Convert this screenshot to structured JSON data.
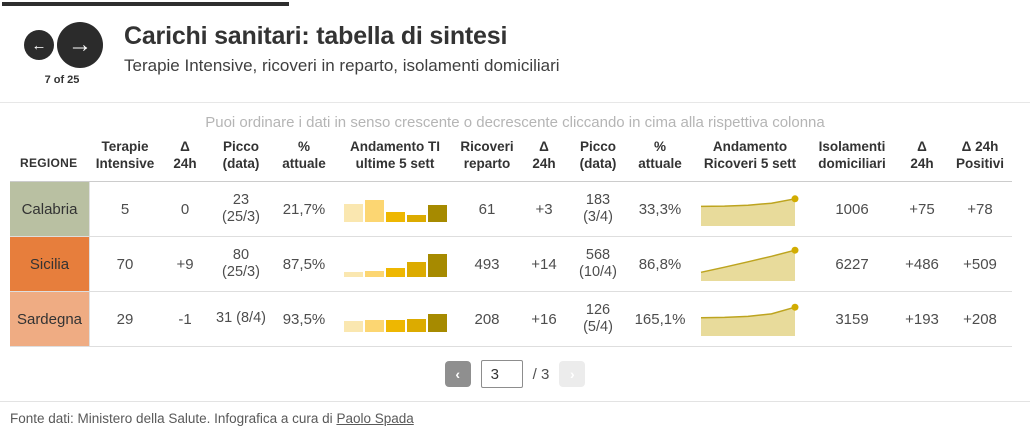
{
  "progress": {
    "current": 7,
    "total": 25
  },
  "header": {
    "slide_count": "7 of 25",
    "title": "Carichi sanitari: tabella di sintesi",
    "subtitle": "Terapie Intensive, ricoveri in reparto, isolamenti domiciliari",
    "prev_icon": "←",
    "next_icon": "→"
  },
  "hint": "Puoi ordinare i dati in senso crescente o decrescente cliccando in cima alla rispettiva colonna",
  "sparkline": {
    "bar_colors": [
      "#fae7b0",
      "#fcd672",
      "#eeb701",
      "#dcab00",
      "#a68a00"
    ],
    "area_fill": "#e8db9b",
    "area_line": "#bda41f",
    "area_dot": "#d2ac00"
  },
  "chart_data": {
    "type": "table",
    "title": "Carichi sanitari: tabella di sintesi",
    "columns": [
      {
        "id": "regione",
        "label": "REGIONE"
      },
      {
        "id": "ti",
        "label": "Terapie\nIntensive"
      },
      {
        "id": "ti_delta",
        "label": "Δ\n24h"
      },
      {
        "id": "ti_picco",
        "label": "Picco\n(data)"
      },
      {
        "id": "ti_pct",
        "label": "%\nattuale"
      },
      {
        "id": "ti_trend",
        "label": "Andamento TI\nultime 5 sett"
      },
      {
        "id": "ricoveri",
        "label": "Ricoveri\nreparto"
      },
      {
        "id": "ric_delta",
        "label": "Δ\n24h"
      },
      {
        "id": "ric_picco",
        "label": "Picco\n(data)"
      },
      {
        "id": "ric_pct",
        "label": "%\nattuale"
      },
      {
        "id": "ric_trend",
        "label": "Andamento\nRicoveri 5 sett"
      },
      {
        "id": "isolamenti",
        "label": "Isolamenti\ndomiciliari"
      },
      {
        "id": "isol_delta",
        "label": "Δ\n24h"
      },
      {
        "id": "positivi_delta",
        "label": "Δ 24h\nPositivi"
      }
    ],
    "rows": [
      {
        "regione": "Calabria",
        "region_color": "#b9c0a2",
        "ti": "5",
        "ti_delta": "0",
        "ti_picco_1": "23",
        "ti_picco_2": "(25/3)",
        "ti_pct": "21,7%",
        "ti_trend": [
          0.78,
          0.96,
          0.43,
          0.3,
          0.74
        ],
        "ricoveri": "61",
        "ric_delta": "+3",
        "ric_picco_1": "183",
        "ric_picco_2": "(3/4)",
        "ric_pct": "33,3%",
        "ric_trend": [
          0.58,
          0.59,
          0.62,
          0.68,
          0.82
        ],
        "isolamenti": "1006",
        "isol_delta": "+75",
        "positivi_delta": "+78"
      },
      {
        "regione": "Sicilia",
        "region_color": "#e77e3c",
        "ti": "70",
        "ti_delta": "+9",
        "ti_picco_1": "80",
        "ti_picco_2": "(25/3)",
        "ti_pct": "87,5%",
        "ti_trend": [
          0.22,
          0.26,
          0.39,
          0.65,
          1.0
        ],
        "ricoveri": "493",
        "ric_delta": "+14",
        "ric_picco_1": "568",
        "ric_picco_2": "(10/4)",
        "ric_pct": "86,8%",
        "ric_trend": [
          0.24,
          0.4,
          0.57,
          0.74,
          0.93
        ],
        "isolamenti": "6227",
        "isol_delta": "+486",
        "positivi_delta": "+509"
      },
      {
        "regione": "Sardegna",
        "region_color": "#efac83",
        "ti": "29",
        "ti_delta": "-1",
        "ti_picco_1": "31 (8/4)",
        "ti_picco_2": "",
        "ti_pct": "93,5%",
        "ti_trend": [
          0.48,
          0.52,
          0.52,
          0.57,
          0.78
        ],
        "ricoveri": "208",
        "ric_delta": "+16",
        "ric_picco_1": "126",
        "ric_picco_2": "(5/4)",
        "ric_pct": "165,1%",
        "ric_trend": [
          0.54,
          0.55,
          0.58,
          0.66,
          0.87
        ],
        "isolamenti": "3159",
        "isol_delta": "+193",
        "positivi_delta": "+208"
      }
    ]
  },
  "pagination": {
    "prev_icon": "‹",
    "page": "3",
    "total": "/ 3",
    "next_icon": "›"
  },
  "footer": {
    "text": "Fonte dati: Ministero della Salute. Infografica a cura di ",
    "link": "Paolo Spada"
  }
}
